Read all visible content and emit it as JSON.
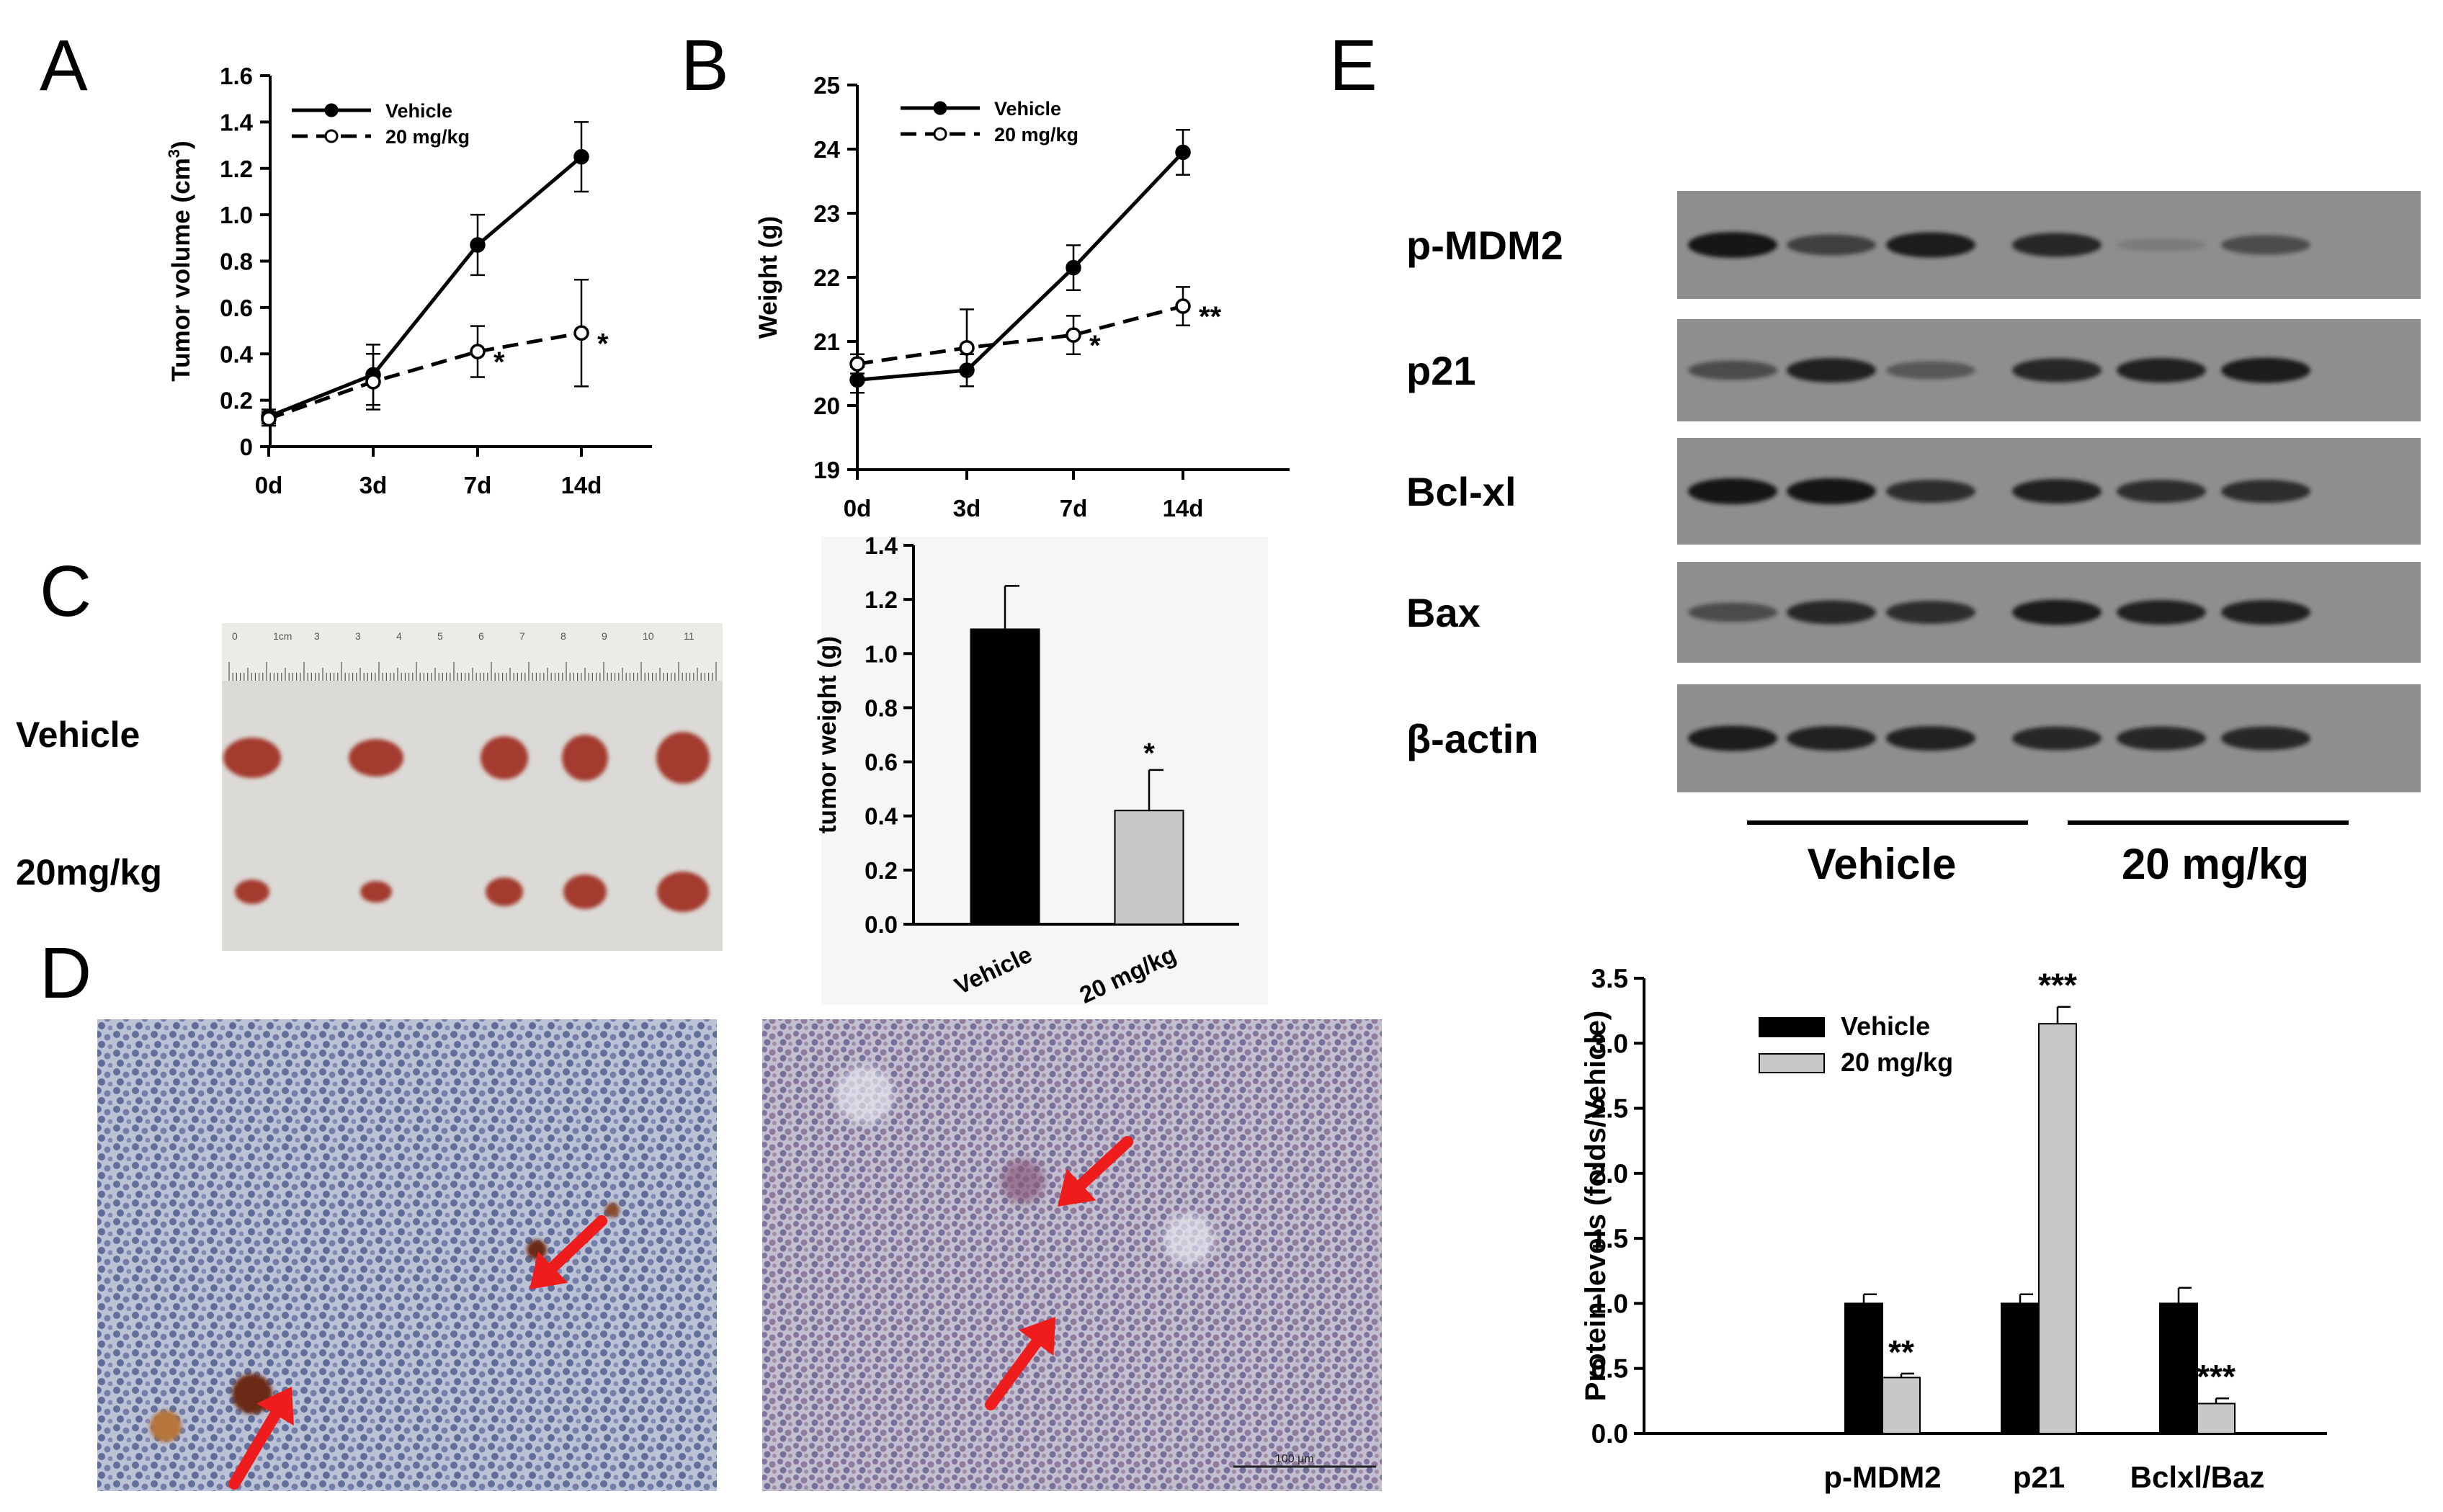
{
  "panels": {
    "A": "A",
    "B": "B",
    "C": "C",
    "D": "D",
    "E": "E"
  },
  "colors": {
    "vehicle_bar": "#000000",
    "treated_bar": "#c8c8c8",
    "arrow": "#ee1c1c",
    "blot_bg": "#8e8e8e",
    "band": "#161616",
    "ihc_bg": "#b9bfd3",
    "tumor": "#a33a2e"
  },
  "chart_data": [
    {
      "id": "A",
      "type": "line",
      "ylabel_main": "Tumor volume (cm",
      "ylabel_sup": "3",
      "ylabel_tail": ")",
      "xlabel": "",
      "categories": [
        "0d",
        "3d",
        "7d",
        "14d"
      ],
      "ylim": [
        0,
        1.6
      ],
      "yticks": [
        0,
        0.2,
        0.4,
        0.6,
        0.8,
        1.0,
        1.2,
        1.4,
        1.6
      ],
      "ytick_labels": [
        "0",
        "0.2",
        "0.4",
        "0.6",
        "0.8",
        "1.0",
        "1.2",
        "1.4",
        "1.6"
      ],
      "legend_position": "top-left",
      "series": [
        {
          "name": "Vehicle",
          "style": "solid",
          "marker": "filled",
          "values": [
            0.13,
            0.31,
            0.87,
            1.25
          ],
          "errors": [
            0.03,
            0.13,
            0.13,
            0.15
          ]
        },
        {
          "name": "20 mg/kg",
          "style": "dashed",
          "marker": "open",
          "values": [
            0.12,
            0.28,
            0.41,
            0.49
          ],
          "errors": [
            0.03,
            0.12,
            0.11,
            0.23
          ]
        }
      ],
      "annotations": [
        {
          "series": 1,
          "index": 2,
          "text": "*"
        },
        {
          "series": 1,
          "index": 3,
          "text": "*"
        }
      ]
    },
    {
      "id": "B",
      "type": "line",
      "ylabel": "Weight (g)",
      "xlabel": "",
      "categories": [
        "0d",
        "3d",
        "7d",
        "14d"
      ],
      "ylim": [
        19,
        25
      ],
      "yticks": [
        19,
        20,
        21,
        22,
        23,
        24,
        25
      ],
      "ytick_labels": [
        "19",
        "20",
        "21",
        "22",
        "23",
        "24",
        "25"
      ],
      "legend_position": "top-left",
      "series": [
        {
          "name": "Vehicle",
          "style": "solid",
          "marker": "filled",
          "values": [
            20.4,
            20.55,
            22.15,
            23.95
          ],
          "errors": [
            0.2,
            0.25,
            0.35,
            0.35
          ]
        },
        {
          "name": "20 mg/kg",
          "style": "dashed",
          "marker": "open",
          "values": [
            20.65,
            20.9,
            21.1,
            21.55
          ],
          "errors": [
            0.15,
            0.6,
            0.3,
            0.3
          ]
        }
      ],
      "annotations": [
        {
          "series": 1,
          "index": 2,
          "text": "*"
        },
        {
          "series": 1,
          "index": 3,
          "text": "**"
        }
      ]
    },
    {
      "id": "C-bar",
      "type": "bar",
      "ylabel": "tumor weight (g)",
      "categories": [
        "Vehicle",
        "20 mg/kg"
      ],
      "values": [
        1.09,
        0.42
      ],
      "errors": [
        0.16,
        0.15
      ],
      "ylim": [
        0,
        1.4
      ],
      "yticks": [
        0,
        0.2,
        0.4,
        0.6,
        0.8,
        1.0,
        1.2,
        1.4
      ],
      "ytick_labels": [
        "0.0",
        "0.2",
        "0.4",
        "0.6",
        "0.8",
        "1.0",
        "1.2",
        "1.4"
      ],
      "annotations": [
        {
          "index": 1,
          "text": "*"
        }
      ]
    },
    {
      "id": "E-bar",
      "type": "bar",
      "ylabel": "Protein levels (folds/Vehicle)",
      "categories": [
        "p-MDM2",
        "p21",
        "Bclxl/Baz"
      ],
      "legend_position": "top-left",
      "series": [
        {
          "name": "Vehicle",
          "values": [
            1.0,
            1.0,
            1.0
          ],
          "errors": [
            0.07,
            0.07,
            0.12
          ]
        },
        {
          "name": "20 mg/kg",
          "values": [
            0.43,
            3.15,
            0.23
          ],
          "errors": [
            0.03,
            0.13,
            0.04
          ]
        }
      ],
      "ylim": [
        0,
        3.5
      ],
      "yticks": [
        0,
        0.5,
        1.0,
        1.5,
        2.0,
        2.5,
        3.0,
        3.5
      ],
      "ytick_labels": [
        "0.0",
        "0.5",
        "1.0",
        "1.5",
        "2.0",
        "2.5",
        "3.0",
        "3.5"
      ],
      "annotations": [
        {
          "index": 0,
          "text": "**"
        },
        {
          "index": 1,
          "text": "***"
        },
        {
          "index": 2,
          "text": "***"
        }
      ]
    }
  ],
  "photo_C": {
    "row_labels": [
      "Vehicle",
      "20mg/kg"
    ],
    "ruler_labels": [
      "0",
      "1cm",
      "3",
      "3",
      "4",
      "5",
      "6",
      "7",
      "8",
      "9",
      "10",
      "11"
    ]
  },
  "ihc_D": {
    "scale_bar": "100 μm"
  },
  "blot_E": {
    "rows": [
      "p-MDM2",
      "p21",
      "Bcl-xl",
      "Bax",
      "β-actin"
    ],
    "groups": [
      "Vehicle",
      "20 mg/kg"
    ],
    "band_intensity": [
      [
        1.0,
        0.65,
        0.95,
        0.85,
        0.12,
        0.55
      ],
      [
        0.55,
        0.9,
        0.45,
        0.85,
        0.9,
        0.95
      ],
      [
        1.0,
        1.0,
        0.8,
        0.9,
        0.8,
        0.8
      ],
      [
        0.55,
        0.85,
        0.8,
        0.95,
        0.9,
        0.9
      ],
      [
        0.95,
        0.9,
        0.9,
        0.85,
        0.85,
        0.85
      ]
    ]
  }
}
